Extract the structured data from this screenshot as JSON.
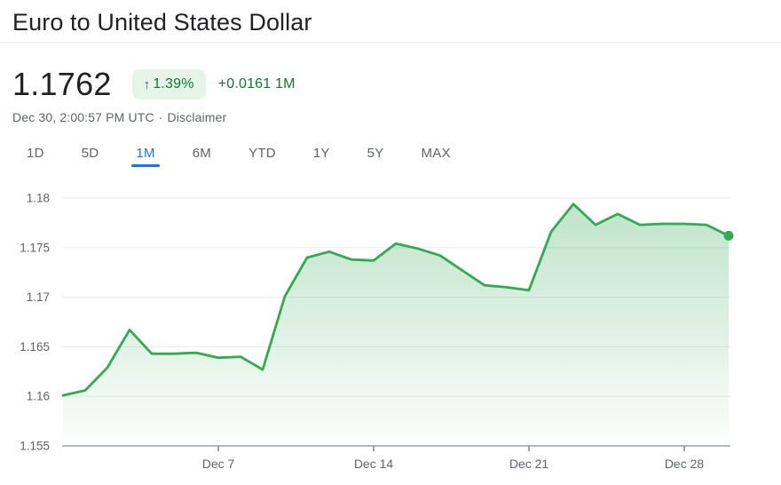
{
  "header": {
    "title": "Euro to United States Dollar"
  },
  "quote": {
    "price": "1.1762",
    "arrow": "↑",
    "change_percent": "1.39%",
    "change_abs": "+0.0161 1M",
    "timestamp": "Dec 30, 2:00:57 PM UTC",
    "separator": "·",
    "disclaimer": "Disclaimer"
  },
  "tabs": [
    {
      "label": "1D",
      "active": false
    },
    {
      "label": "5D",
      "active": false
    },
    {
      "label": "1M",
      "active": true
    },
    {
      "label": "6M",
      "active": false
    },
    {
      "label": "YTD",
      "active": false
    },
    {
      "label": "1Y",
      "active": false
    },
    {
      "label": "5Y",
      "active": false
    },
    {
      "label": "MAX",
      "active": false
    }
  ],
  "colors": {
    "text_primary": "#202124",
    "text_secondary": "#5f6368",
    "accent_blue": "#1a73e8",
    "up_green_text": "#137333",
    "badge_bg": "#e6f4ea",
    "line_green": "#34a853",
    "grid_line": "#e8eaed",
    "axis_line": "#9aa0a6",
    "tick_line": "#80868b"
  },
  "chart_data": {
    "type": "area",
    "title": "EUR/USD 1 month price history",
    "xlabel": "",
    "ylabel": "",
    "x": [
      "Nov 30",
      "Dec 1",
      "Dec 2",
      "Dec 3",
      "Dec 4",
      "Dec 5",
      "Dec 6",
      "Dec 7",
      "Dec 8",
      "Dec 9",
      "Dec 10",
      "Dec 11",
      "Dec 12",
      "Dec 13",
      "Dec 14",
      "Dec 15",
      "Dec 16",
      "Dec 17",
      "Dec 18",
      "Dec 19",
      "Dec 20",
      "Dec 21",
      "Dec 22",
      "Dec 23",
      "Dec 24",
      "Dec 25",
      "Dec 26",
      "Dec 27",
      "Dec 28",
      "Dec 29",
      "Dec 30"
    ],
    "values": [
      1.1601,
      1.1606,
      1.1629,
      1.1667,
      1.1643,
      1.1643,
      1.1644,
      1.1639,
      1.164,
      1.1627,
      1.1701,
      1.174,
      1.1746,
      1.1738,
      1.1737,
      1.1754,
      1.1749,
      1.1742,
      1.1727,
      1.1712,
      1.171,
      1.1707,
      1.1766,
      1.1794,
      1.1773,
      1.1784,
      1.1773,
      1.1774,
      1.1774,
      1.1773,
      1.1762
    ],
    "ylim": [
      1.155,
      1.18
    ],
    "y_ticks": [
      1.18,
      1.175,
      1.17,
      1.165,
      1.16,
      1.155
    ],
    "x_ticks": [
      {
        "index": 7,
        "label": "Dec 7"
      },
      {
        "index": 14,
        "label": "Dec 14"
      },
      {
        "index": 21,
        "label": "Dec 21"
      },
      {
        "index": 28,
        "label": "Dec 28"
      }
    ],
    "grid": true,
    "legend": "none",
    "end_dot": true,
    "last_value": 1.1762
  }
}
